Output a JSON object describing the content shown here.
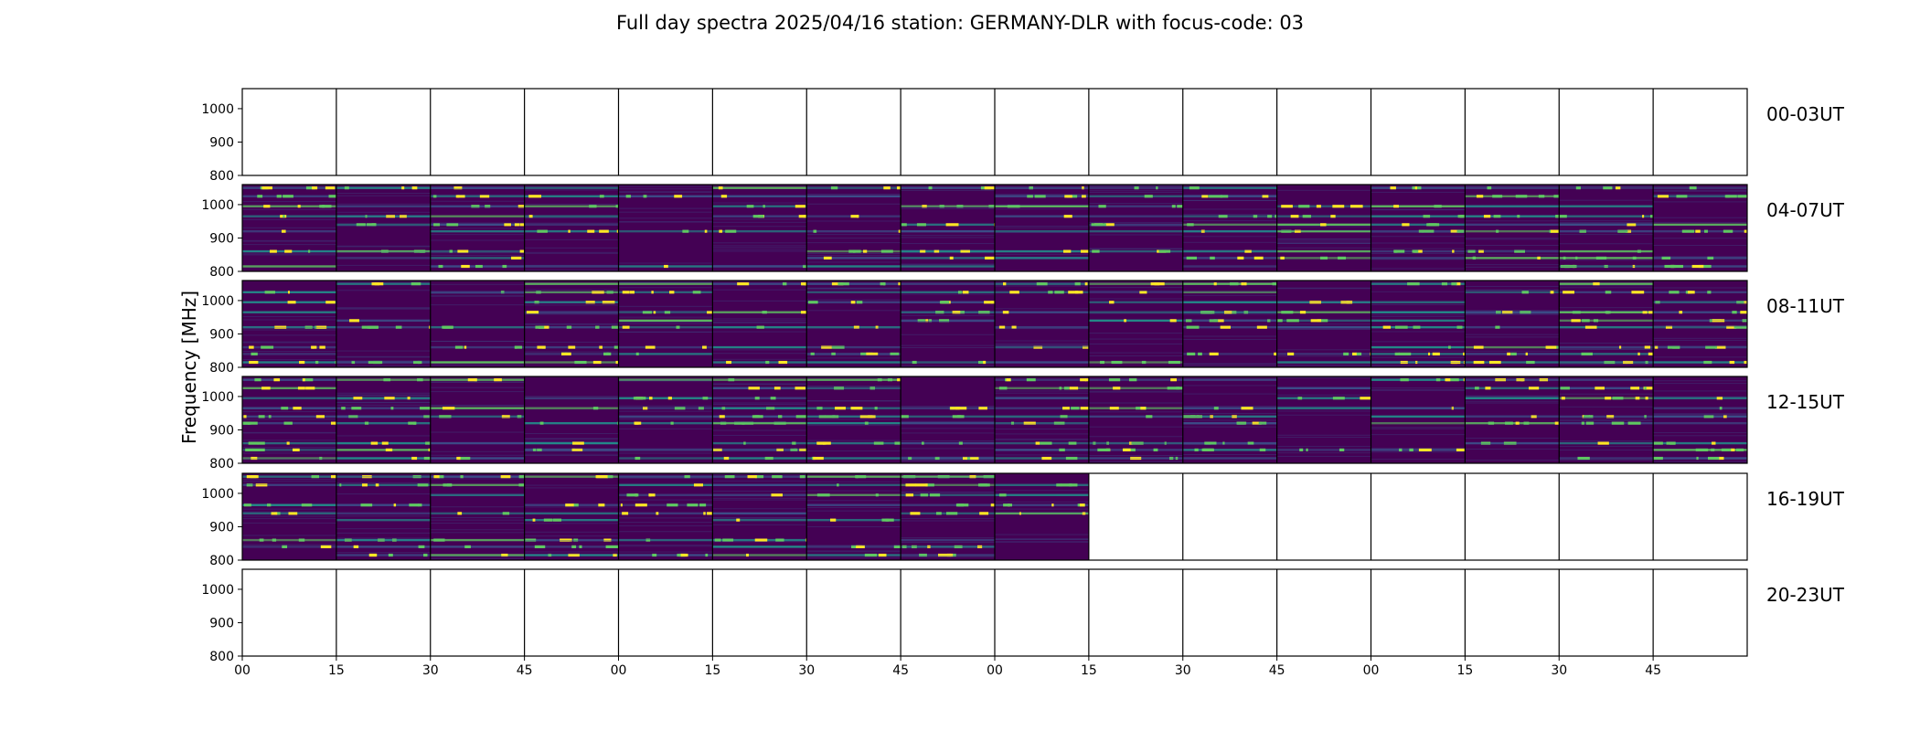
{
  "chart_data": {
    "type": "heatmap",
    "title": "Full day spectra 2025/04/16 station: GERMANY-DLR with focus-code: 03",
    "ylabel": "Frequency [MHz]",
    "xlabel": "",
    "ylim": [
      800,
      1060
    ],
    "yticks": [
      800,
      900,
      1000
    ],
    "xticks": [
      "00",
      "15",
      "30",
      "45",
      "00",
      "15",
      "30",
      "45",
      "00",
      "15",
      "30",
      "45",
      "00",
      "15",
      "30",
      "45"
    ],
    "colormap": [
      "#440154",
      "#3b528b",
      "#21918c",
      "#5ec962",
      "#fde725"
    ],
    "rows": [
      {
        "label": "00-03UT",
        "filled_segments": 0
      },
      {
        "label": "04-07UT",
        "filled_segments": 16
      },
      {
        "label": "08-11UT",
        "filled_segments": 16
      },
      {
        "label": "12-15UT",
        "filled_segments": 16
      },
      {
        "label": "16-19UT",
        "filled_segments": 9
      },
      {
        "label": "20-23UT",
        "filled_segments": 0
      }
    ],
    "segments_per_row": 16,
    "minutes_per_segment": 15,
    "bright_bands_mhz": [
      1050,
      1025,
      995,
      965,
      940,
      920,
      860,
      840,
      815
    ]
  }
}
